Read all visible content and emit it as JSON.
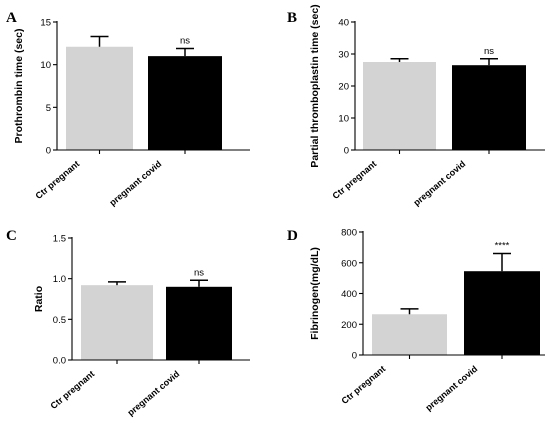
{
  "colors": {
    "control_bar": "#d3d3d3",
    "covid_bar": "#000000",
    "axis": "#000000"
  },
  "chart_data": [
    {
      "panel": "A",
      "type": "bar",
      "ylabel": "Prothrombin time (sec)",
      "categories": [
        "Ctr pregnant",
        "pregnant covid"
      ],
      "values": [
        12.1,
        11.0
      ],
      "errors": [
        1.2,
        0.9
      ],
      "significance": [
        "",
        "ns"
      ],
      "ylim": [
        0,
        15
      ],
      "yticks": [
        0,
        5,
        10,
        15
      ]
    },
    {
      "panel": "B",
      "type": "bar",
      "ylabel": "Partial thromboplastin time (sec)",
      "categories": [
        "Ctr pregnant",
        "pregnant covid"
      ],
      "values": [
        27.5,
        26.5
      ],
      "errors": [
        1.0,
        2.0
      ],
      "significance": [
        "",
        "ns"
      ],
      "ylim": [
        0,
        40
      ],
      "yticks": [
        0,
        10,
        20,
        30,
        40
      ]
    },
    {
      "panel": "C",
      "type": "bar",
      "ylabel": "Ratio",
      "categories": [
        "Ctr pregnant",
        "pregnant covid"
      ],
      "values": [
        0.92,
        0.9
      ],
      "errors": [
        0.04,
        0.08
      ],
      "significance": [
        "",
        "ns"
      ],
      "ylim": [
        0,
        1.5
      ],
      "yticks": [
        "0.0",
        "0.5",
        "1.0",
        "1.5"
      ]
    },
    {
      "panel": "D",
      "type": "bar",
      "ylabel": "Fibrinogen(mg/dL)",
      "categories": [
        "Ctr pregnant",
        "pregnant covid"
      ],
      "values": [
        265,
        545
      ],
      "errors": [
        35,
        115
      ],
      "significance": [
        "",
        "****"
      ],
      "ylim": [
        0,
        800
      ],
      "yticks": [
        0,
        200,
        400,
        600,
        800
      ]
    }
  ]
}
